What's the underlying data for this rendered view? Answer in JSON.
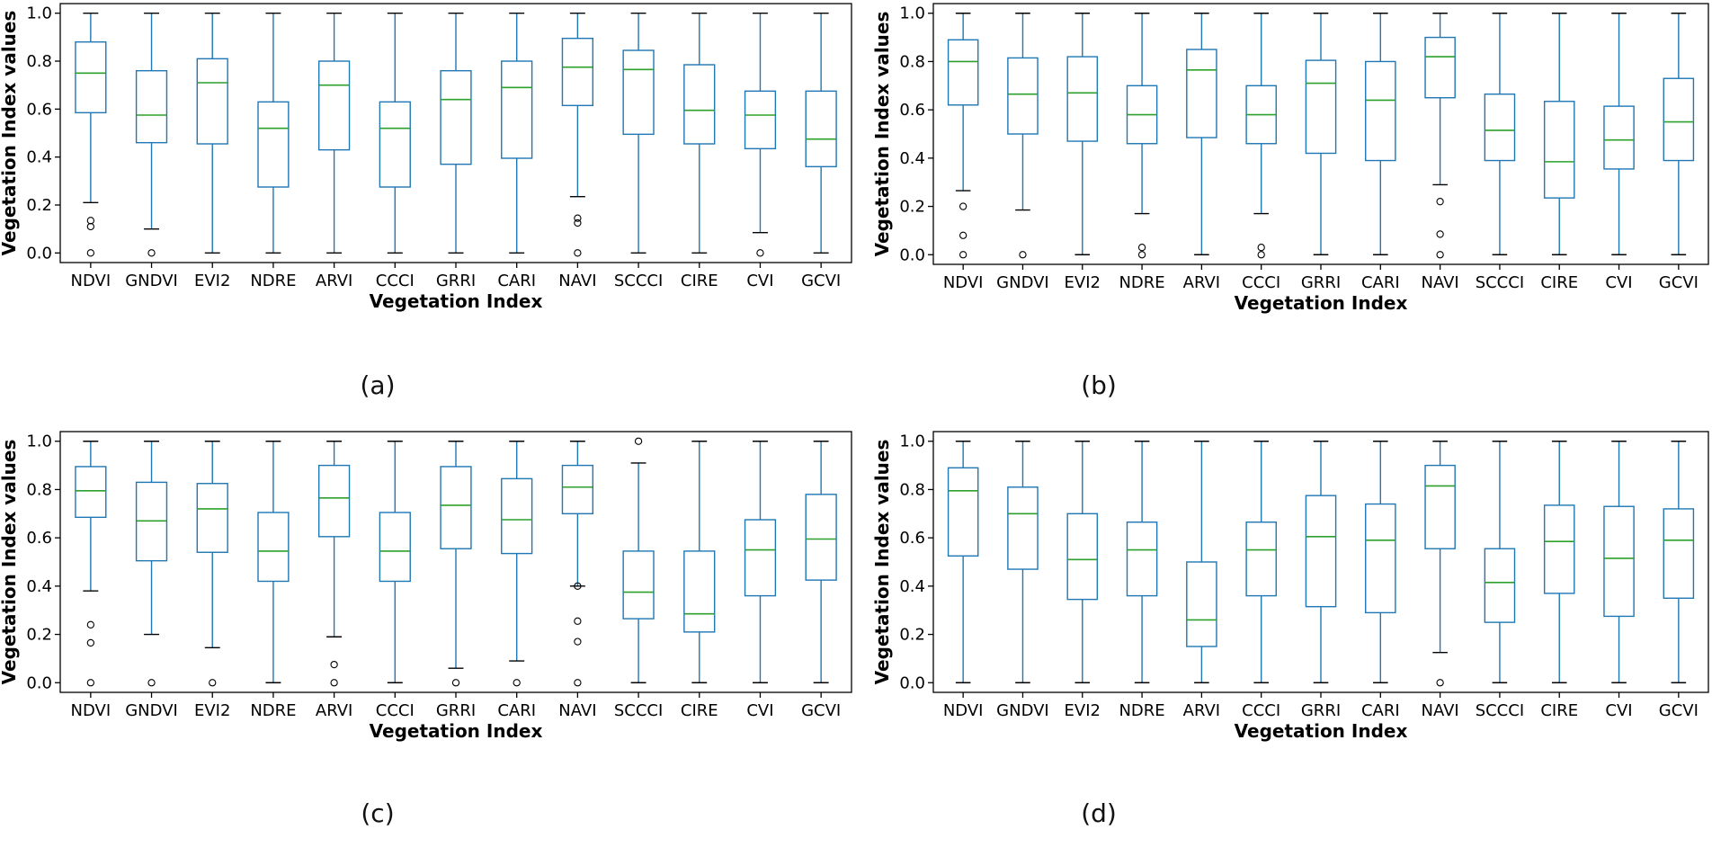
{
  "chart_data": [
    {
      "type": "box",
      "panel_label": "(a)",
      "xlabel": "Vegetation Index",
      "ylabel": "Vegetation Index values",
      "ylim": [
        -0.04,
        1.04
      ],
      "yticks": [
        "0.0",
        "0.2",
        "0.4",
        "0.6",
        "0.8",
        "1.0"
      ],
      "categories": [
        "NDVI",
        "GNDVI",
        "EVI2",
        "NDRE",
        "ARVI",
        "CCCI",
        "GRRI",
        "CARI",
        "NAVI",
        "SCCCI",
        "CIRE",
        "CVI",
        "GCVI"
      ],
      "boxes": [
        {
          "whislo": 0.21,
          "q1": 0.585,
          "med": 0.75,
          "q3": 0.88,
          "whishi": 1.0,
          "fliers": [
            0.0,
            0.11,
            0.135
          ]
        },
        {
          "whislo": 0.1,
          "q1": 0.46,
          "med": 0.575,
          "q3": 0.76,
          "whishi": 1.0,
          "fliers": [
            0.0
          ]
        },
        {
          "whislo": 0.0,
          "q1": 0.455,
          "med": 0.71,
          "q3": 0.81,
          "whishi": 1.0,
          "fliers": []
        },
        {
          "whislo": 0.0,
          "q1": 0.275,
          "med": 0.52,
          "q3": 0.63,
          "whishi": 1.0,
          "fliers": []
        },
        {
          "whislo": 0.0,
          "q1": 0.43,
          "med": 0.7,
          "q3": 0.8,
          "whishi": 1.0,
          "fliers": []
        },
        {
          "whislo": 0.0,
          "q1": 0.275,
          "med": 0.52,
          "q3": 0.63,
          "whishi": 1.0,
          "fliers": []
        },
        {
          "whislo": 0.0,
          "q1": 0.37,
          "med": 0.64,
          "q3": 0.76,
          "whishi": 1.0,
          "fliers": []
        },
        {
          "whislo": 0.0,
          "q1": 0.395,
          "med": 0.69,
          "q3": 0.8,
          "whishi": 1.0,
          "fliers": []
        },
        {
          "whislo": 0.235,
          "q1": 0.615,
          "med": 0.775,
          "q3": 0.895,
          "whishi": 1.0,
          "fliers": [
            0.0,
            0.125,
            0.145
          ]
        },
        {
          "whislo": 0.0,
          "q1": 0.495,
          "med": 0.765,
          "q3": 0.845,
          "whishi": 1.0,
          "fliers": []
        },
        {
          "whislo": 0.0,
          "q1": 0.455,
          "med": 0.595,
          "q3": 0.785,
          "whishi": 1.0,
          "fliers": []
        },
        {
          "whislo": 0.085,
          "q1": 0.435,
          "med": 0.575,
          "q3": 0.675,
          "whishi": 1.0,
          "fliers": [
            0.0
          ]
        },
        {
          "whislo": 0.0,
          "q1": 0.36,
          "med": 0.475,
          "q3": 0.675,
          "whishi": 1.0,
          "fliers": []
        }
      ]
    },
    {
      "type": "box",
      "panel_label": "(b)",
      "xlabel": "Vegetation Index",
      "ylabel": "Vegetation Index values",
      "ylim": [
        -0.04,
        1.04
      ],
      "yticks": [
        "0.0",
        "0.2",
        "0.4",
        "0.6",
        "0.8",
        "1.0"
      ],
      "categories": [
        "NDVI",
        "GNDVI",
        "EVI2",
        "NDRE",
        "ARVI",
        "CCCI",
        "GRRI",
        "CARI",
        "NAVI",
        "SCCCI",
        "CIRE",
        "CVI",
        "GCVI"
      ],
      "boxes": [
        {
          "whislo": 0.265,
          "q1": 0.62,
          "med": 0.8,
          "q3": 0.89,
          "whishi": 1.0,
          "fliers": [
            0.0,
            0.08,
            0.2
          ]
        },
        {
          "whislo": 0.185,
          "q1": 0.5,
          "med": 0.665,
          "q3": 0.815,
          "whishi": 1.0,
          "fliers": [
            0.0
          ]
        },
        {
          "whislo": 0.0,
          "q1": 0.47,
          "med": 0.67,
          "q3": 0.82,
          "whishi": 1.0,
          "fliers": []
        },
        {
          "whislo": 0.17,
          "q1": 0.46,
          "med": 0.58,
          "q3": 0.7,
          "whishi": 1.0,
          "fliers": [
            0.0,
            0.03
          ]
        },
        {
          "whislo": 0.0,
          "q1": 0.485,
          "med": 0.765,
          "q3": 0.85,
          "whishi": 1.0,
          "fliers": []
        },
        {
          "whislo": 0.17,
          "q1": 0.46,
          "med": 0.58,
          "q3": 0.7,
          "whishi": 1.0,
          "fliers": [
            0.0,
            0.03
          ]
        },
        {
          "whislo": 0.0,
          "q1": 0.42,
          "med": 0.71,
          "q3": 0.805,
          "whishi": 1.0,
          "fliers": []
        },
        {
          "whislo": 0.0,
          "q1": 0.39,
          "med": 0.64,
          "q3": 0.8,
          "whishi": 1.0,
          "fliers": []
        },
        {
          "whislo": 0.29,
          "q1": 0.65,
          "med": 0.82,
          "q3": 0.9,
          "whishi": 1.0,
          "fliers": [
            0.0,
            0.085,
            0.22
          ]
        },
        {
          "whislo": 0.0,
          "q1": 0.39,
          "med": 0.515,
          "q3": 0.665,
          "whishi": 1.0,
          "fliers": []
        },
        {
          "whislo": 0.0,
          "q1": 0.235,
          "med": 0.385,
          "q3": 0.635,
          "whishi": 1.0,
          "fliers": []
        },
        {
          "whislo": 0.0,
          "q1": 0.355,
          "med": 0.475,
          "q3": 0.615,
          "whishi": 1.0,
          "fliers": []
        },
        {
          "whislo": 0.0,
          "q1": 0.39,
          "med": 0.55,
          "q3": 0.73,
          "whishi": 1.0,
          "fliers": []
        }
      ]
    },
    {
      "type": "box",
      "panel_label": "(c)",
      "xlabel": "Vegetation Index",
      "ylabel": "Vegetation Index values",
      "ylim": [
        -0.04,
        1.04
      ],
      "yticks": [
        "0.0",
        "0.2",
        "0.4",
        "0.6",
        "0.8",
        "1.0"
      ],
      "categories": [
        "NDVI",
        "GNDVI",
        "EVI2",
        "NDRE",
        "ARVI",
        "CCCI",
        "GRRI",
        "CARI",
        "NAVI",
        "SCCCI",
        "CIRE",
        "CVI",
        "GCVI"
      ],
      "boxes": [
        {
          "whislo": 0.38,
          "q1": 0.685,
          "med": 0.795,
          "q3": 0.895,
          "whishi": 1.0,
          "fliers": [
            0.0,
            0.165,
            0.24
          ]
        },
        {
          "whislo": 0.2,
          "q1": 0.505,
          "med": 0.67,
          "q3": 0.83,
          "whishi": 1.0,
          "fliers": [
            0.0
          ]
        },
        {
          "whislo": 0.145,
          "q1": 0.54,
          "med": 0.72,
          "q3": 0.825,
          "whishi": 1.0,
          "fliers": [
            0.0
          ]
        },
        {
          "whislo": 0.0,
          "q1": 0.42,
          "med": 0.545,
          "q3": 0.705,
          "whishi": 1.0,
          "fliers": []
        },
        {
          "whislo": 0.19,
          "q1": 0.605,
          "med": 0.765,
          "q3": 0.9,
          "whishi": 1.0,
          "fliers": [
            0.0,
            0.075
          ]
        },
        {
          "whislo": 0.0,
          "q1": 0.42,
          "med": 0.545,
          "q3": 0.705,
          "whishi": 1.0,
          "fliers": []
        },
        {
          "whislo": 0.06,
          "q1": 0.555,
          "med": 0.735,
          "q3": 0.895,
          "whishi": 1.0,
          "fliers": [
            0.0
          ]
        },
        {
          "whislo": 0.09,
          "q1": 0.535,
          "med": 0.675,
          "q3": 0.845,
          "whishi": 1.0,
          "fliers": [
            0.0
          ]
        },
        {
          "whislo": 0.4,
          "q1": 0.7,
          "med": 0.81,
          "q3": 0.9,
          "whishi": 1.0,
          "fliers": [
            0.0,
            0.17,
            0.255,
            0.4
          ]
        },
        {
          "whislo": 0.0,
          "q1": 0.265,
          "med": 0.375,
          "q3": 0.545,
          "whishi": 0.91,
          "fliers": [
            1.0
          ]
        },
        {
          "whislo": 0.0,
          "q1": 0.21,
          "med": 0.285,
          "q3": 0.545,
          "whishi": 1.0,
          "fliers": []
        },
        {
          "whislo": 0.0,
          "q1": 0.36,
          "med": 0.55,
          "q3": 0.675,
          "whishi": 1.0,
          "fliers": []
        },
        {
          "whislo": 0.0,
          "q1": 0.425,
          "med": 0.595,
          "q3": 0.78,
          "whishi": 1.0,
          "fliers": []
        }
      ]
    },
    {
      "type": "box",
      "panel_label": "(d)",
      "xlabel": "Vegetation Index",
      "ylabel": "Vegetation Index values",
      "ylim": [
        -0.04,
        1.04
      ],
      "yticks": [
        "0.0",
        "0.2",
        "0.4",
        "0.6",
        "0.8",
        "1.0"
      ],
      "categories": [
        "NDVI",
        "GNDVI",
        "EVI2",
        "NDRE",
        "ARVI",
        "CCCI",
        "GRRI",
        "CARI",
        "NAVI",
        "SCCCI",
        "CIRE",
        "CVI",
        "GCVI"
      ],
      "boxes": [
        {
          "whislo": 0.0,
          "q1": 0.525,
          "med": 0.795,
          "q3": 0.89,
          "whishi": 1.0,
          "fliers": []
        },
        {
          "whislo": 0.0,
          "q1": 0.47,
          "med": 0.7,
          "q3": 0.81,
          "whishi": 1.0,
          "fliers": []
        },
        {
          "whislo": 0.0,
          "q1": 0.345,
          "med": 0.51,
          "q3": 0.7,
          "whishi": 1.0,
          "fliers": []
        },
        {
          "whislo": 0.0,
          "q1": 0.36,
          "med": 0.55,
          "q3": 0.665,
          "whishi": 1.0,
          "fliers": []
        },
        {
          "whislo": 0.0,
          "q1": 0.15,
          "med": 0.26,
          "q3": 0.5,
          "whishi": 1.0,
          "fliers": []
        },
        {
          "whislo": 0.0,
          "q1": 0.36,
          "med": 0.55,
          "q3": 0.665,
          "whishi": 1.0,
          "fliers": []
        },
        {
          "whislo": 0.0,
          "q1": 0.315,
          "med": 0.605,
          "q3": 0.775,
          "whishi": 1.0,
          "fliers": []
        },
        {
          "whislo": 0.0,
          "q1": 0.29,
          "med": 0.59,
          "q3": 0.74,
          "whishi": 1.0,
          "fliers": []
        },
        {
          "whislo": 0.125,
          "q1": 0.555,
          "med": 0.815,
          "q3": 0.9,
          "whishi": 1.0,
          "fliers": [
            0.0
          ]
        },
        {
          "whislo": 0.0,
          "q1": 0.25,
          "med": 0.415,
          "q3": 0.555,
          "whishi": 1.0,
          "fliers": []
        },
        {
          "whislo": 0.0,
          "q1": 0.37,
          "med": 0.585,
          "q3": 0.735,
          "whishi": 1.0,
          "fliers": []
        },
        {
          "whislo": 0.0,
          "q1": 0.275,
          "med": 0.515,
          "q3": 0.73,
          "whishi": 1.0,
          "fliers": []
        },
        {
          "whislo": 0.0,
          "q1": 0.35,
          "med": 0.59,
          "q3": 0.72,
          "whishi": 1.0,
          "fliers": []
        }
      ]
    }
  ],
  "colors": {
    "box": "#1f77b4",
    "median": "#2ca02c",
    "axis": "#000000",
    "flier": "#000000"
  }
}
